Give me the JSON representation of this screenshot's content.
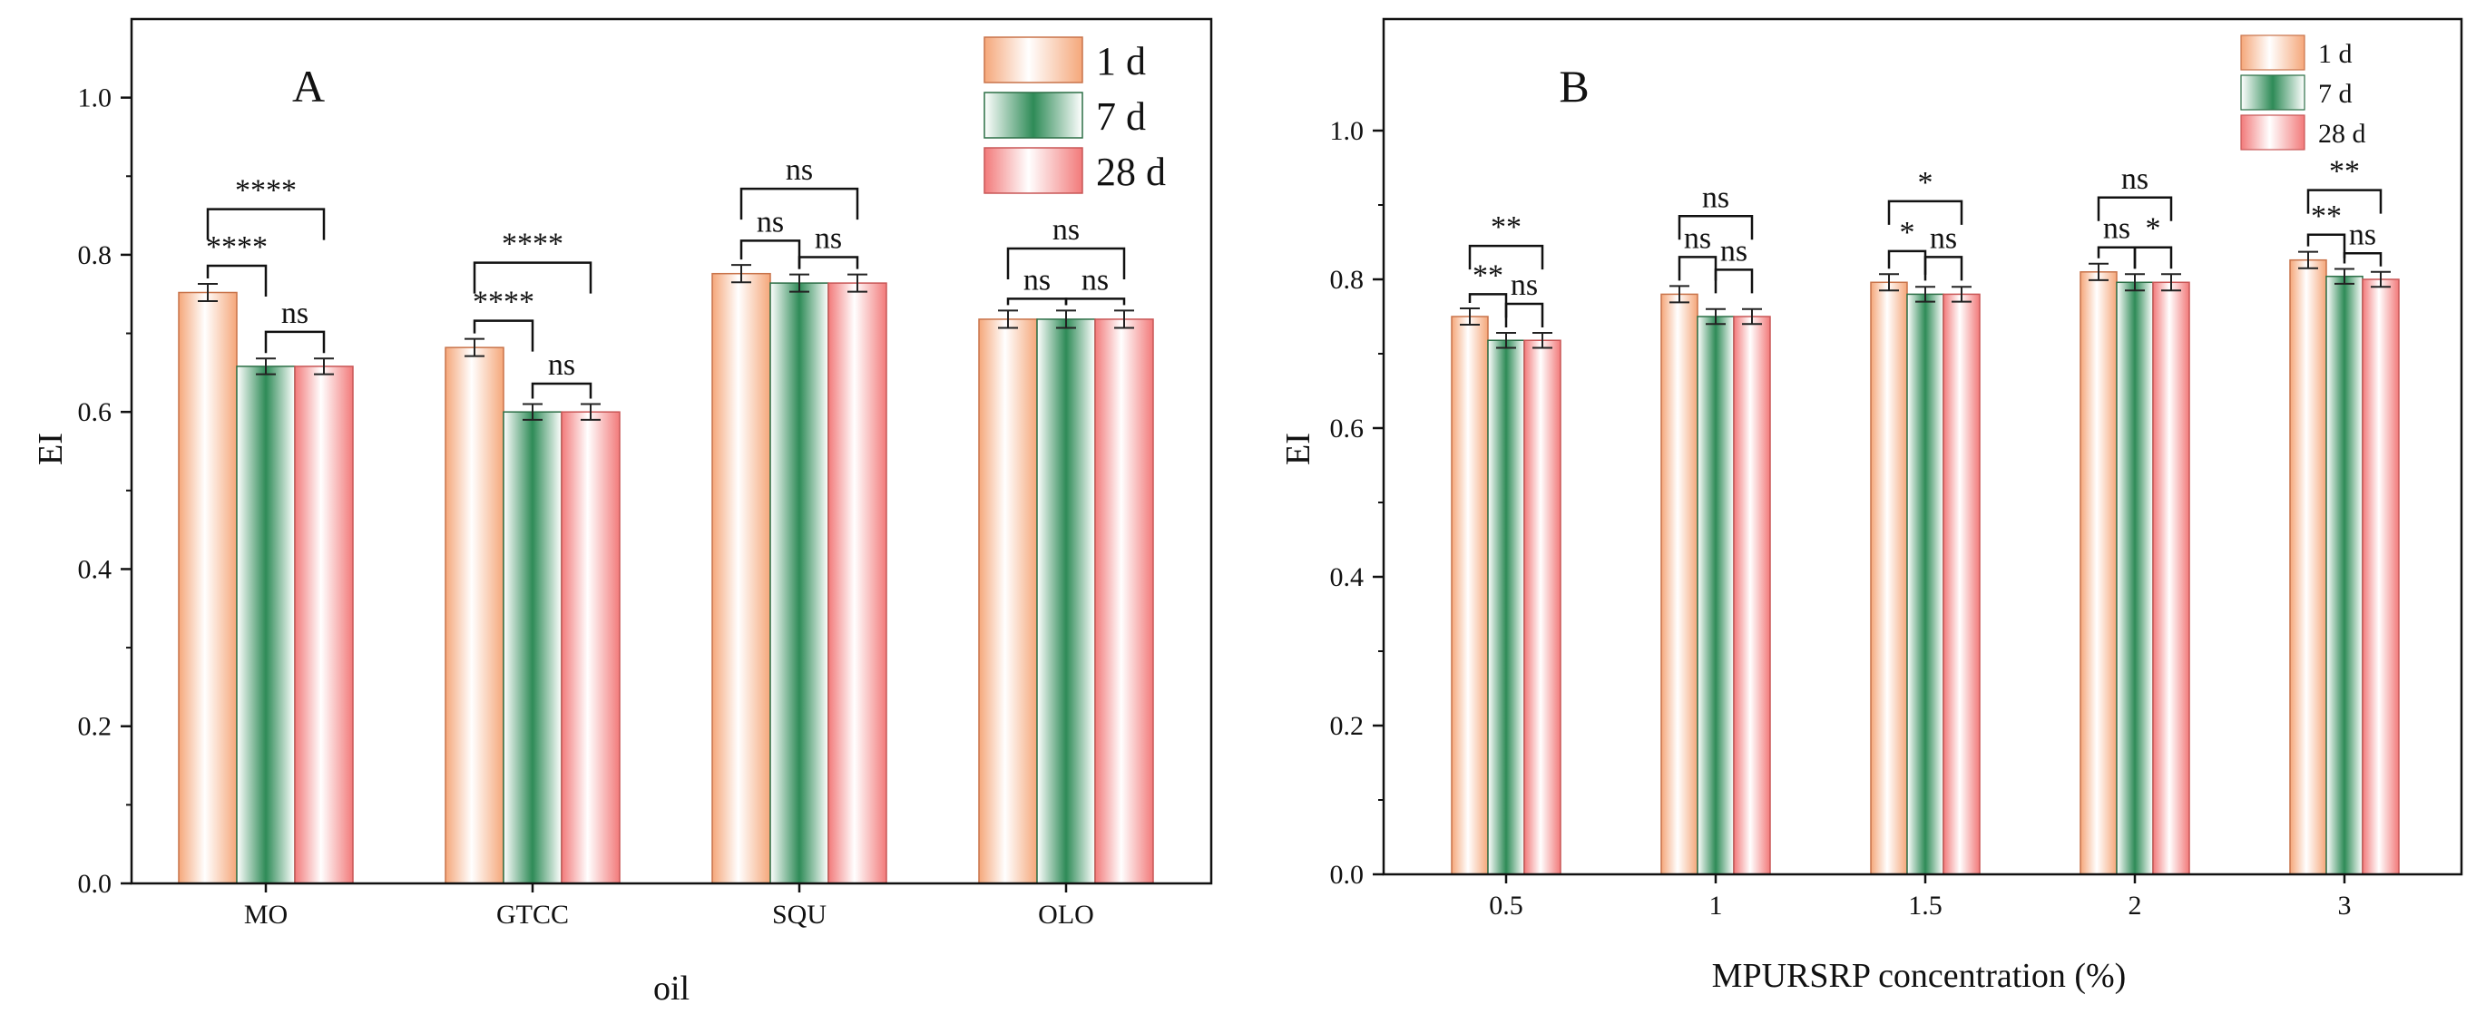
{
  "colors": {
    "day1": "#f5a77a",
    "day7": "#2e8b57",
    "day28": "#f27a7a",
    "axis": "#111111",
    "background": "#ffffff"
  },
  "chart_data": [
    {
      "type": "bar",
      "panel": "A",
      "xlabel": "oil",
      "ylabel": "EI",
      "categories": [
        "MO",
        "GTCC",
        "SQU",
        "OLO"
      ],
      "ylim": [
        0,
        1.1
      ],
      "yticks": [
        "0.0",
        "0.2",
        "0.4",
        "0.6",
        "0.8",
        "1.0"
      ],
      "legend": [
        "1 d",
        "7 d",
        "28 d"
      ],
      "legend_position": "top-right",
      "series": [
        {
          "name": "1 d",
          "values": [
            0.752,
            0.682,
            0.776,
            0.718
          ],
          "errors": [
            0.011,
            0.011,
            0.011,
            0.011
          ]
        },
        {
          "name": "7 d",
          "values": [
            0.658,
            0.6,
            0.764,
            0.718
          ],
          "errors": [
            0.01,
            0.01,
            0.011,
            0.011
          ]
        },
        {
          "name": "28 d",
          "values": [
            0.658,
            0.6,
            0.764,
            0.718
          ],
          "errors": [
            0.01,
            0.01,
            0.011,
            0.011
          ]
        }
      ],
      "significance": [
        {
          "category": 0,
          "from": 0,
          "to": 1,
          "label": "****",
          "y": 0.786
        },
        {
          "category": 0,
          "from": 1,
          "to": 2,
          "label": "ns",
          "y": 0.702
        },
        {
          "category": 0,
          "from": 0,
          "to": 2,
          "label": "****",
          "y": 0.858
        },
        {
          "category": 1,
          "from": 0,
          "to": 1,
          "label": "****",
          "y": 0.716
        },
        {
          "category": 1,
          "from": 1,
          "to": 2,
          "label": "ns",
          "y": 0.636
        },
        {
          "category": 1,
          "from": 0,
          "to": 2,
          "label": "****",
          "y": 0.79
        },
        {
          "category": 2,
          "from": 0,
          "to": 1,
          "label": "ns",
          "y": 0.818
        },
        {
          "category": 2,
          "from": 1,
          "to": 2,
          "label": "ns",
          "y": 0.797
        },
        {
          "category": 2,
          "from": 0,
          "to": 2,
          "label": "ns",
          "y": 0.884
        },
        {
          "category": 3,
          "from": 0,
          "to": 1,
          "label": "ns",
          "y": 0.744
        },
        {
          "category": 3,
          "from": 1,
          "to": 2,
          "label": "ns",
          "y": 0.744
        },
        {
          "category": 3,
          "from": 0,
          "to": 2,
          "label": "ns",
          "y": 0.808
        }
      ]
    },
    {
      "type": "bar",
      "panel": "B",
      "xlabel": "MPURSRP concentration (%)",
      "ylabel": "EI",
      "categories": [
        "0.5",
        "1",
        "1.5",
        "2",
        "3"
      ],
      "ylim": [
        0,
        1.15
      ],
      "yticks": [
        "0.0",
        "0.2",
        "0.4",
        "0.6",
        "0.8",
        "1.0"
      ],
      "legend": [
        "1 d",
        "7 d",
        "28 d"
      ],
      "legend_position": "top-right",
      "series": [
        {
          "name": "1 d",
          "values": [
            0.75,
            0.78,
            0.796,
            0.81,
            0.826
          ],
          "errors": [
            0.011,
            0.011,
            0.011,
            0.011,
            0.011
          ]
        },
        {
          "name": "7 d",
          "values": [
            0.718,
            0.75,
            0.78,
            0.796,
            0.804
          ],
          "errors": [
            0.01,
            0.01,
            0.01,
            0.011,
            0.01
          ]
        },
        {
          "name": "28 d",
          "values": [
            0.718,
            0.75,
            0.78,
            0.796,
            0.8
          ],
          "errors": [
            0.01,
            0.01,
            0.01,
            0.011,
            0.01
          ]
        }
      ],
      "significance": [
        {
          "category": 0,
          "from": 0,
          "to": 1,
          "label": "**",
          "y": 0.78
        },
        {
          "category": 0,
          "from": 1,
          "to": 2,
          "label": "ns",
          "y": 0.767
        },
        {
          "category": 0,
          "from": 0,
          "to": 2,
          "label": "**",
          "y": 0.845
        },
        {
          "category": 1,
          "from": 0,
          "to": 1,
          "label": "ns",
          "y": 0.83
        },
        {
          "category": 1,
          "from": 1,
          "to": 2,
          "label": "ns",
          "y": 0.813
        },
        {
          "category": 1,
          "from": 0,
          "to": 2,
          "label": "ns",
          "y": 0.885
        },
        {
          "category": 2,
          "from": 0,
          "to": 1,
          "label": "*",
          "y": 0.838
        },
        {
          "category": 2,
          "from": 1,
          "to": 2,
          "label": "ns",
          "y": 0.83
        },
        {
          "category": 2,
          "from": 0,
          "to": 2,
          "label": "*",
          "y": 0.905
        },
        {
          "category": 3,
          "from": 0,
          "to": 1,
          "label": "ns",
          "y": 0.843
        },
        {
          "category": 3,
          "from": 1,
          "to": 2,
          "label": "*",
          "y": 0.843
        },
        {
          "category": 3,
          "from": 0,
          "to": 2,
          "label": "ns",
          "y": 0.91
        },
        {
          "category": 4,
          "from": 0,
          "to": 1,
          "label": "**",
          "y": 0.86
        },
        {
          "category": 4,
          "from": 1,
          "to": 2,
          "label": "ns",
          "y": 0.835
        },
        {
          "category": 4,
          "from": 0,
          "to": 2,
          "label": "**",
          "y": 0.92
        }
      ]
    }
  ]
}
